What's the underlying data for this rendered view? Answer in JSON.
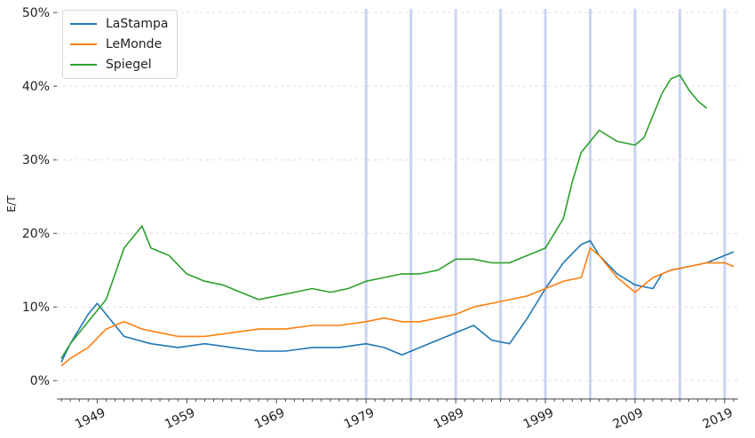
{
  "chart_data": {
    "type": "line",
    "title": "",
    "xlabel": "",
    "ylabel": "E/T",
    "x_range": [
      1944.5,
      2020.5
    ],
    "ylim": [
      -2.5,
      50.5
    ],
    "y_ticks": [
      0,
      10,
      20,
      30,
      40,
      50
    ],
    "y_tick_labels": [
      "0%",
      "10%",
      "20%",
      "30%",
      "40%",
      "50%"
    ],
    "x_ticks": [
      1949,
      1959,
      1969,
      1979,
      1989,
      1999,
      2009,
      2019
    ],
    "x_tick_labels": [
      "1949",
      "1959",
      "1969",
      "1979",
      "1989",
      "1999",
      "2009",
      "2019"
    ],
    "vertical_markers": [
      1979,
      1984,
      1989,
      1994,
      1999,
      2004,
      2009,
      2014,
      2019
    ],
    "grid": "horizontal dotted",
    "legend_position": "upper-left",
    "series": [
      {
        "name": "LaStampa",
        "color": "#1f77b4",
        "x": [
          1945,
          1946,
          1947,
          1948,
          1949,
          1950,
          1952,
          1955,
          1958,
          1961,
          1964,
          1967,
          1970,
          1973,
          1976,
          1979,
          1981,
          1983,
          1985,
          1987,
          1989,
          1991,
          1993,
          1995,
          1997,
          1999,
          2001,
          2003,
          2004,
          2005,
          2007,
          2009,
          2011,
          2012,
          2013,
          2015,
          2017,
          2019,
          2020
        ],
        "y": [
          2.5,
          5.0,
          7.0,
          9.0,
          10.5,
          9.0,
          6.0,
          5.0,
          4.5,
          5.0,
          4.5,
          4.0,
          4.0,
          4.5,
          4.5,
          5.0,
          4.5,
          3.5,
          4.5,
          5.5,
          6.5,
          7.5,
          5.5,
          5.0,
          8.5,
          12.5,
          16.0,
          18.5,
          19.0,
          17.0,
          14.5,
          13.0,
          12.5,
          14.5,
          15.0,
          15.5,
          16.0,
          17.0,
          17.5
        ]
      },
      {
        "name": "LeMonde",
        "color": "#ff7f0e",
        "x": [
          1945,
          1946,
          1948,
          1950,
          1952,
          1954,
          1956,
          1958,
          1961,
          1964,
          1967,
          1970,
          1973,
          1976,
          1979,
          1981,
          1983,
          1985,
          1987,
          1989,
          1991,
          1993,
          1995,
          1997,
          1999,
          2001,
          2003,
          2004,
          2005,
          2007,
          2009,
          2011,
          2013,
          2015,
          2017,
          2019,
          2020
        ],
        "y": [
          2.0,
          3.0,
          4.5,
          7.0,
          8.0,
          7.0,
          6.5,
          6.0,
          6.0,
          6.5,
          7.0,
          7.0,
          7.5,
          7.5,
          8.0,
          8.5,
          8.0,
          8.0,
          8.5,
          9.0,
          10.0,
          10.5,
          11.0,
          11.5,
          12.5,
          13.5,
          14.0,
          18.0,
          17.0,
          14.0,
          12.0,
          14.0,
          15.0,
          15.5,
          16.0,
          16.0,
          15.5
        ]
      },
      {
        "name": "Spiegel",
        "color": "#2ca02c",
        "x": [
          1945,
          1946,
          1948,
          1950,
          1952,
          1954,
          1955,
          1957,
          1959,
          1961,
          1963,
          1965,
          1967,
          1969,
          1971,
          1973,
          1975,
          1977,
          1979,
          1981,
          1983,
          1985,
          1987,
          1989,
          1991,
          1993,
          1995,
          1997,
          1999,
          2001,
          2002,
          2003,
          2005,
          2007,
          2009,
          2010,
          2011,
          2012,
          2013,
          2014,
          2015,
          2016,
          2017
        ],
        "y": [
          3.0,
          5.0,
          8.0,
          11.0,
          18.0,
          21.0,
          18.0,
          17.0,
          14.5,
          13.5,
          13.0,
          12.0,
          11.0,
          11.5,
          12.0,
          12.5,
          12.0,
          12.5,
          13.5,
          14.0,
          14.5,
          14.5,
          15.0,
          16.5,
          16.5,
          16.0,
          16.0,
          17.0,
          18.0,
          22.0,
          27.0,
          31.0,
          34.0,
          32.5,
          32.0,
          33.0,
          36.0,
          39.0,
          41.0,
          41.5,
          39.5,
          38.0,
          37.0
        ]
      }
    ]
  }
}
